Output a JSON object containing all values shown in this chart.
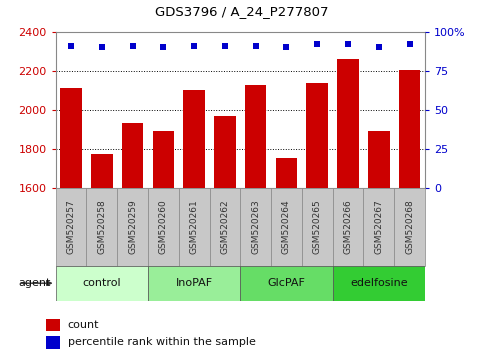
{
  "title": "GDS3796 / A_24_P277807",
  "samples": [
    "GSM520257",
    "GSM520258",
    "GSM520259",
    "GSM520260",
    "GSM520261",
    "GSM520262",
    "GSM520263",
    "GSM520264",
    "GSM520265",
    "GSM520266",
    "GSM520267",
    "GSM520268"
  ],
  "bar_values": [
    2110,
    1775,
    1930,
    1890,
    2100,
    1970,
    2125,
    1750,
    2135,
    2260,
    1890,
    2205
  ],
  "blue_dot_values": [
    91,
    90,
    91,
    90,
    91,
    91,
    91,
    90,
    92,
    92,
    90,
    92
  ],
  "ylim_left": [
    1600,
    2400
  ],
  "ylim_right": [
    0,
    100
  ],
  "yticks_left": [
    1600,
    1800,
    2000,
    2200,
    2400
  ],
  "yticks_right": [
    0,
    25,
    50,
    75,
    100
  ],
  "bar_color": "#cc0000",
  "dot_color": "#0000cc",
  "bg_plot": "#ffffff",
  "sample_bg": "#c8c8c8",
  "groups": [
    {
      "label": "control",
      "start": 0,
      "end": 3,
      "color": "#ccffcc"
    },
    {
      "label": "InoPAF",
      "start": 3,
      "end": 6,
      "color": "#99ee99"
    },
    {
      "label": "GlcPAF",
      "start": 6,
      "end": 9,
      "color": "#66dd66"
    },
    {
      "label": "edelfosine",
      "start": 9,
      "end": 12,
      "color": "#33cc33"
    }
  ],
  "xlabel_agent": "agent",
  "legend_count": "count",
  "legend_pct": "percentile rank within the sample",
  "title_color": "#000000",
  "left_tick_color": "#cc0000",
  "right_tick_color": "#0000cc",
  "bar_width": 0.7,
  "gridline_color": "#000000",
  "gridline_yticks": [
    1800,
    2000,
    2200
  ]
}
